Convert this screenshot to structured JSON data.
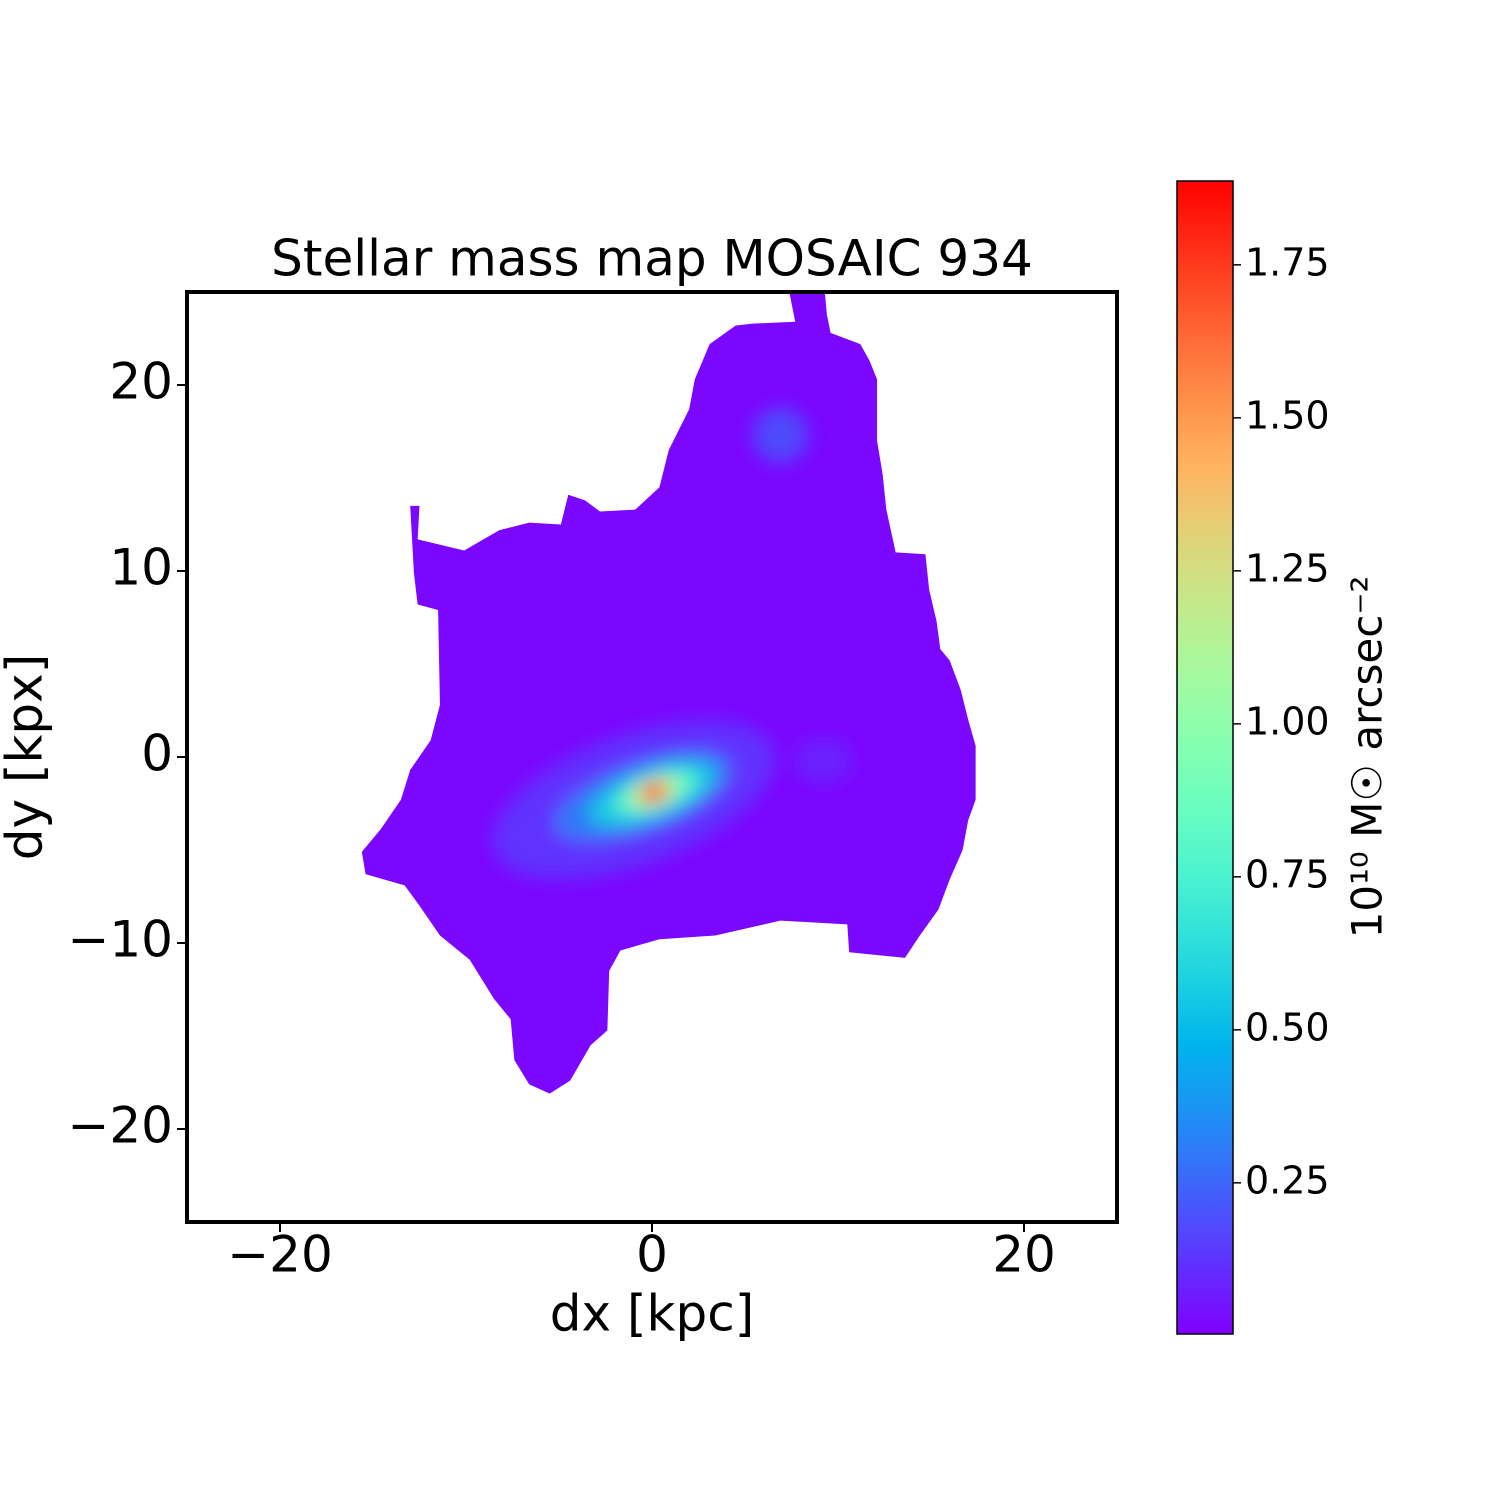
{
  "chart_data": {
    "type": "map",
    "title": "Stellar mass map MOSAIC 934",
    "xlabel": "dx [kpc]",
    "ylabel": "dy [kpx]",
    "colorbar_label": "10¹⁰ M☉ arcsec⁻²",
    "xlim": [
      -25,
      25
    ],
    "ylim": [
      -25,
      25
    ],
    "xticks": [
      {
        "value": -20,
        "label": "−20"
      },
      0,
      20
    ],
    "yticks": [
      {
        "value": -20,
        "label": "−20"
      },
      {
        "value": -10,
        "label": "−10"
      },
      0,
      10,
      20
    ],
    "clim": [
      0.003,
      1.887
    ],
    "cticks": [
      0.25,
      {
        "value": 0.5,
        "label": "0.50"
      },
      0.75,
      {
        "value": 1,
        "label": "1.00"
      },
      1.25,
      {
        "value": 1.5,
        "label": "1.50"
      },
      1.75
    ],
    "colormap": "rainbow",
    "background_value": 0.02,
    "outline": {
      "x": [
        7.4,
        9.3,
        9.4,
        9.6,
        11.2,
        11.7,
        12.1,
        12.1,
        12.4,
        12.6,
        13.1,
        14.7,
        14.9,
        15.3,
        15.5,
        16.0,
        16.6,
        17.0,
        17.4,
        17.4,
        17.0,
        16.7,
        16.0,
        15.4,
        14.4,
        13.6,
        10.6,
        10.5,
        6.9,
        3.4,
        0.4,
        -1.7,
        -2.3,
        -2.4,
        -3.3,
        -4.4,
        -5.5,
        -6.6,
        -7.4,
        -7.6,
        -8.5,
        -9.8,
        -11.4,
        -12.5,
        -13.3,
        -15.4,
        -15.6,
        -14.6,
        -13.5,
        -13.0,
        -11.9,
        -11.4,
        -11.5,
        -12.6,
        -12.8,
        -13.0,
        -12.5,
        -12.6,
        -10.1,
        -8.2,
        -6.6,
        -4.9,
        -4.5,
        -3.6,
        -2.8,
        -0.9,
        0.4,
        0.9,
        2.0,
        2.3,
        3.1,
        4.5,
        5.4,
        7.7
      ],
      "y": [
        24.9,
        24.9,
        23.8,
        22.8,
        22.2,
        21.3,
        20.3,
        17.0,
        15.2,
        13.3,
        11.0,
        10.9,
        9.0,
        7.3,
        5.8,
        5.2,
        3.6,
        2.0,
        0.6,
        -2.3,
        -3.4,
        -5.0,
        -6.6,
        -8.2,
        -9.6,
        -10.8,
        -10.5,
        -9.0,
        -8.8,
        -9.6,
        -9.8,
        -10.4,
        -11.5,
        -14.7,
        -15.5,
        -17.4,
        -18.1,
        -17.6,
        -16.3,
        -14.1,
        -13.0,
        -10.9,
        -9.6,
        -8.0,
        -6.9,
        -6.3,
        -5.1,
        -3.9,
        -2.3,
        -0.7,
        0.9,
        2.8,
        7.9,
        8.2,
        9.9,
        13.5,
        13.5,
        11.7,
        11.1,
        12.2,
        12.6,
        12.5,
        14.1,
        13.8,
        13.2,
        13.3,
        14.5,
        16.5,
        18.7,
        20.3,
        22.2,
        23.2,
        23.3,
        23.4
      ]
    },
    "blobs": [
      {
        "x": -1.0,
        "y": -2.3,
        "rx": 8.0,
        "ry": 3.5,
        "angle": 20,
        "value": 0.12
      },
      {
        "x": -0.5,
        "y": -2.1,
        "rx": 5.0,
        "ry": 1.8,
        "angle": 20,
        "value": 0.3
      },
      {
        "x": 0.0,
        "y": -2.0,
        "rx": 3.6,
        "ry": 1.3,
        "angle": 20,
        "value": 0.55
      },
      {
        "x": 0.2,
        "y": -1.9,
        "rx": 2.3,
        "ry": 0.9,
        "angle": 20,
        "value": 0.85
      },
      {
        "x": 0.1,
        "y": -1.9,
        "rx": 1.2,
        "ry": 0.65,
        "angle": 20,
        "value": 1.3
      },
      {
        "x": 0.1,
        "y": -1.9,
        "rx": 0.6,
        "ry": 0.45,
        "angle": 20,
        "value": 1.88
      },
      {
        "x": 6.9,
        "y": 17.3,
        "rx": 1.5,
        "ry": 1.5,
        "angle": 0,
        "value": 0.18
      },
      {
        "x": 9.2,
        "y": -0.2,
        "rx": 1.5,
        "ry": 1.2,
        "angle": 0,
        "value": 0.08
      }
    ]
  }
}
